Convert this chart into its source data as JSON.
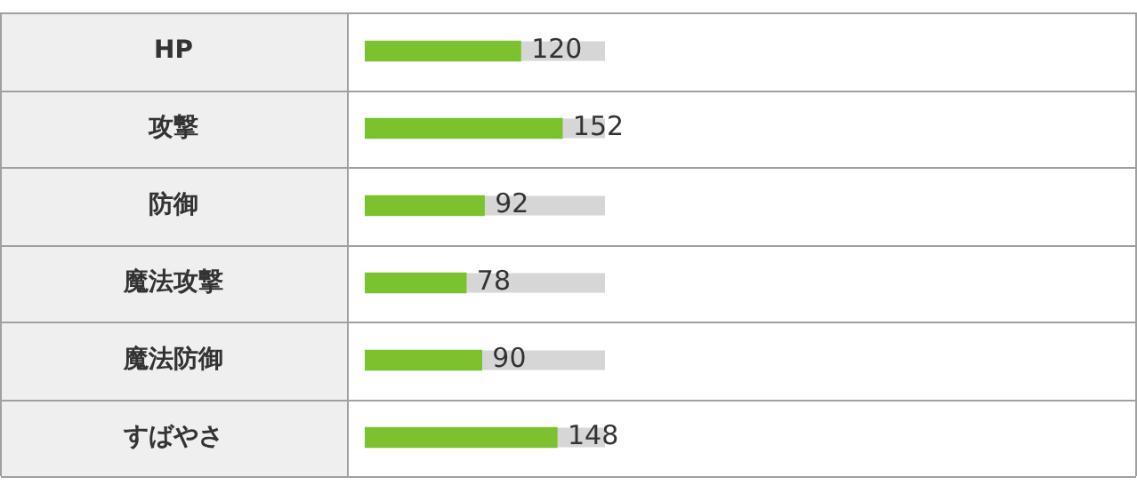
{
  "chart_data": {
    "type": "bar",
    "orientation": "horizontal",
    "categories": [
      "HP",
      "攻撃",
      "防御",
      "魔法攻撃",
      "魔法防御",
      "すばやさ"
    ],
    "values": [
      120,
      152,
      92,
      78,
      90,
      148
    ],
    "color": "#7cc22e",
    "xlim": [
      0,
      185
    ],
    "data_labels": true
  }
}
